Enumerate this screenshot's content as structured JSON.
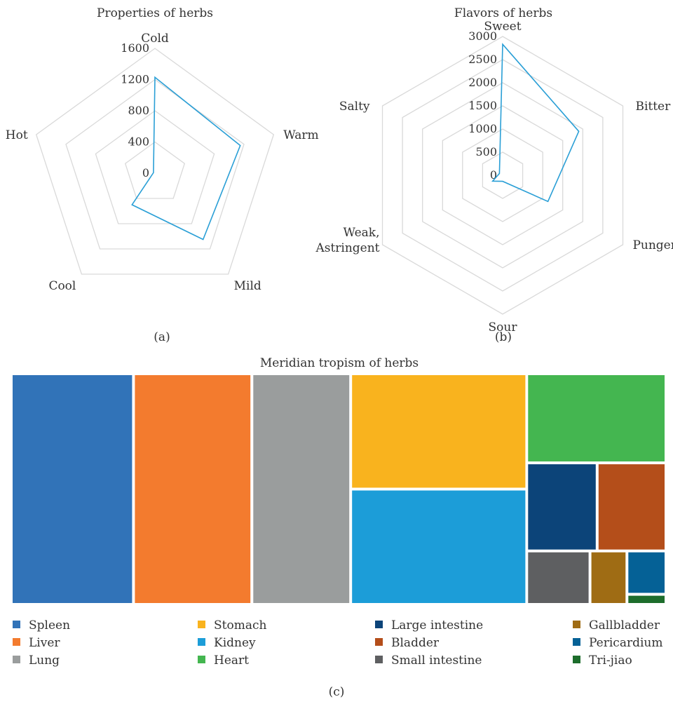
{
  "panels": {
    "a": "(a)",
    "b": "(b)",
    "c": "(c)"
  },
  "chart_data": [
    {
      "type": "radar",
      "title": "Properties of herbs",
      "categories": [
        "Cold",
        "Warm",
        "Mild",
        "Cool",
        "Hot"
      ],
      "values": [
        1230,
        1150,
        1050,
        500,
        20
      ],
      "rlim": [
        0,
        1600
      ],
      "ticks": [
        0,
        400,
        800,
        1200,
        1600
      ],
      "grid": true,
      "color": "#2a9fd6"
    },
    {
      "type": "radar",
      "title": "Flavors of herbs",
      "categories": [
        "Sweet",
        "Bitter",
        "Pungent",
        "Sour",
        "Weak, Astringent",
        "Salty"
      ],
      "values": [
        2830,
        1900,
        1130,
        130,
        250,
        80
      ],
      "rlim": [
        0,
        3000
      ],
      "ticks": [
        0,
        500,
        1000,
        1500,
        2000,
        2500,
        3000
      ],
      "grid": true,
      "color": "#2a9fd6"
    },
    {
      "type": "treemap",
      "title": "Meridian tropism of herbs",
      "items": [
        {
          "name": "Spleen",
          "value": 1000,
          "color": "#3173b8"
        },
        {
          "name": "Liver",
          "value": 968,
          "color": "#f37b2e"
        },
        {
          "name": "Lung",
          "value": 808,
          "color": "#9a9d9d"
        },
        {
          "name": "Stomach",
          "value": 720,
          "color": "#f9b31e"
        },
        {
          "name": "Kidney",
          "value": 720,
          "color": "#1c9dd8"
        },
        {
          "name": "Heart",
          "value": 440,
          "color": "#44b650"
        },
        {
          "name": "Large intestine",
          "value": 220,
          "color": "#0c4479"
        },
        {
          "name": "Bladder",
          "value": 215,
          "color": "#b44e1a"
        },
        {
          "name": "Small intestine",
          "value": 120,
          "color": "#5e5f61"
        },
        {
          "name": "Gallbladder",
          "value": 70,
          "color": "#9f6c14"
        },
        {
          "name": "Pericardium",
          "value": 60,
          "color": "#056196"
        },
        {
          "name": "Tri-jiao",
          "value": 14,
          "color": "#1d6d2c"
        }
      ],
      "legend_position": "bottom"
    }
  ]
}
